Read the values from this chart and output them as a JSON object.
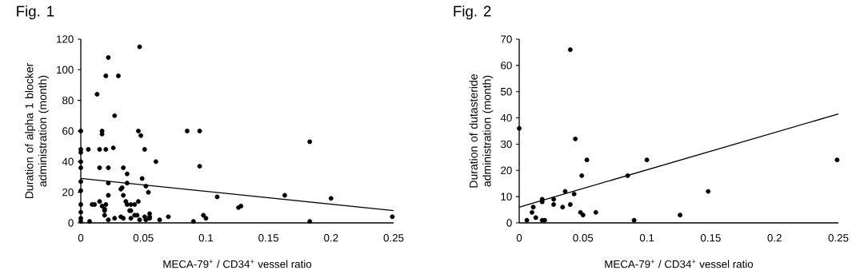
{
  "chart_data": [
    {
      "type": "scatter",
      "title": "Fig. 1",
      "xlabel": "MECA-79$^{+}$ / CD34$^{+}$ vessel ratio",
      "ylabel": "Duration of alpha 1 blocker administration (month)",
      "xlim": [
        0,
        0.25
      ],
      "xticks": [
        0,
        0.05,
        0.1,
        0.15,
        0.2,
        0.25
      ],
      "ylim": [
        0,
        120
      ],
      "yticks": [
        0,
        20,
        40,
        60,
        80,
        100,
        120
      ],
      "marker": "circle",
      "series": [
        {
          "color": "#000000",
          "x": [
            0.047,
            0.022,
            0.02,
            0.03,
            0.013,
            0.027,
            0,
            0.017,
            0.017,
            0.046,
            0.048,
            0.085,
            0.095,
            0,
            0,
            0.006,
            0.015,
            0.02,
            0.026,
            0.051,
            0,
            0.06,
            0,
            0.015,
            0.022,
            0.034,
            0.037,
            0.095,
            0.049,
            0,
            0.022,
            0.037,
            0.052,
            0.033,
            0.032,
            0.054,
            0,
            0.022,
            0.034,
            0.109,
            0.015,
            0.036,
            0.046,
            0.009,
            0.011,
            0,
            0.017,
            0.02,
            0.037,
            0.04,
            0.043,
            0.019,
            0.019,
            0.039,
            0.04,
            0,
            0.019,
            0.043,
            0.045,
            0.07,
            0.098,
            0.1,
            0.055,
            0.051,
            0.055,
            0,
            0,
            0.007,
            0.022,
            0.027,
            0.032,
            0.034,
            0.04,
            0.047,
            0.052,
            0.055,
            0.063,
            0.09,
            0.183,
            0.126,
            0.128,
            0.163,
            0.2,
            0.183,
            0.249
          ],
          "values": [
            115,
            108,
            96,
            96,
            84,
            70,
            60,
            60,
            58,
            60,
            57,
            60,
            60,
            48,
            46,
            48,
            48,
            48,
            49,
            48,
            40,
            40,
            36,
            36,
            36,
            36,
            32,
            37,
            29,
            27,
            26,
            26,
            24,
            23,
            22,
            20,
            21,
            18,
            18,
            17,
            14,
            14,
            14,
            12,
            12,
            12,
            11,
            12,
            12,
            12,
            12,
            9,
            8,
            8,
            8,
            7,
            5,
            5,
            5,
            4,
            5,
            3,
            6,
            4,
            4,
            3,
            1,
            1,
            2,
            3,
            4,
            3,
            3,
            2,
            2,
            3,
            2,
            1,
            53,
            10,
            11,
            18,
            16,
            1,
            4
          ]
        },
        {
          "type": "line",
          "marker": "none",
          "color": "#000000",
          "x": [
            0,
            0.25
          ],
          "values": [
            29,
            8
          ]
        }
      ]
    },
    {
      "type": "scatter",
      "title": "Fig. 2",
      "xlabel": "MECA-79$^{+}$ / CD34$^{+}$ vessel ratio",
      "ylabel": "Duration of dutasteride administration (month)",
      "xlim": [
        0,
        0.25
      ],
      "xticks": [
        0,
        0.05,
        0.1,
        0.15,
        0.2,
        0.25
      ],
      "ylim": [
        0,
        70
      ],
      "yticks": [
        0,
        10,
        20,
        30,
        40,
        50,
        60,
        70
      ],
      "marker": "circle",
      "series": [
        {
          "color": "#000000",
          "x": [
            0.04,
            0,
            0.044,
            0.053,
            0.049,
            0.085,
            0.1,
            0.036,
            0.043,
            0.018,
            0.018,
            0.027,
            0.027,
            0.04,
            0.034,
            0.011,
            0.01,
            0.048,
            0.05,
            0.06,
            0.013,
            0.006,
            0.018,
            0.02,
            0.09,
            0.148,
            0.126,
            0.249
          ],
          "values": [
            66,
            36,
            32,
            24,
            18,
            18,
            24,
            12,
            11,
            9,
            8,
            9,
            7,
            7,
            6,
            6,
            4,
            4,
            3,
            4,
            2,
            1,
            1,
            1,
            1,
            12,
            3,
            24
          ]
        },
        {
          "type": "line",
          "marker": "none",
          "color": "#000000",
          "x": [
            0,
            0.25
          ],
          "values": [
            6,
            41.5
          ]
        }
      ]
    }
  ]
}
